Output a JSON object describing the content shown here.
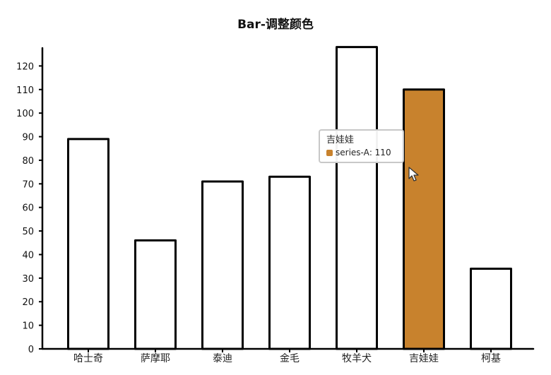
{
  "chart_data": {
    "type": "bar",
    "title": "Bar-调整颜色",
    "categories": [
      "哈士奇",
      "萨摩耶",
      "泰迪",
      "金毛",
      "牧羊犬",
      "吉娃娃",
      "柯基"
    ],
    "series": [
      {
        "name": "series-A",
        "values": [
          89,
          46,
          71,
          73,
          128,
          110,
          34
        ]
      }
    ],
    "ylim": [
      0,
      130
    ],
    "yticks": [
      0,
      10,
      20,
      30,
      40,
      50,
      60,
      70,
      80,
      90,
      100,
      110,
      120
    ],
    "bar_color": "#ffffff",
    "highlight_color": "#c8822d",
    "highlight_index": 5,
    "grid": false
  },
  "tooltip": {
    "title": "吉娃娃",
    "series_name": "series-A",
    "value": "110",
    "color": "#c8822d"
  }
}
